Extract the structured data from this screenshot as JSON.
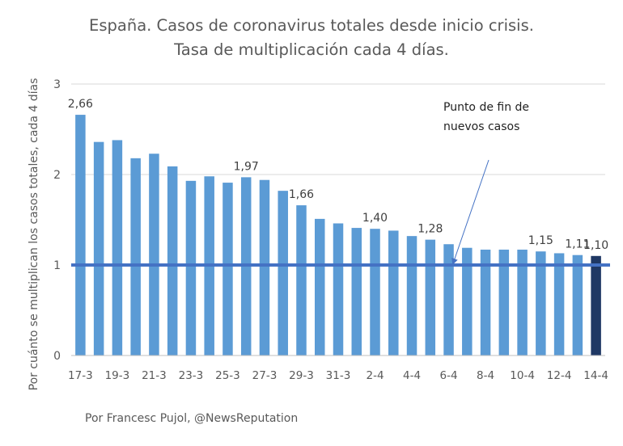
{
  "title_line1": "España. Casos de coronavirus totales desde inicio crisis.",
  "title_line2": "Tasa de multiplicación cada 4 días.",
  "annotation_line1": "Punto de fin de",
  "annotation_line2": "nuevos casos",
  "credit": "Por Francesc Pujol, @NewsReputation",
  "colors": {
    "bar": "#5b9bd5",
    "highlight_bar": "#1f3864",
    "reference_line": "#4472c4",
    "grid": "#d9d9d9"
  },
  "chart_data": {
    "type": "bar",
    "title": "España. Casos de coronavirus totales desde inicio crisis. Tasa de multiplicación cada 4 días.",
    "ylabel": "Por cuánto se multiplican los casos totales, cada 4 días",
    "xlabel": "",
    "ylim": [
      0,
      3
    ],
    "yticks": [
      0,
      1,
      2,
      3
    ],
    "grid": true,
    "categories": [
      "17-3",
      "18-3",
      "19-3",
      "20-3",
      "21-3",
      "22-3",
      "23-3",
      "24-3",
      "25-3",
      "26-3",
      "27-3",
      "28-3",
      "29-3",
      "30-3",
      "31-3",
      "1-4",
      "2-4",
      "3-4",
      "4-4",
      "5-4",
      "6-4",
      "7-4",
      "8-4",
      "9-4",
      "10-4",
      "11-4",
      "12-4",
      "13-4",
      "14-4"
    ],
    "shown_tick_labels": [
      "17-3",
      "19-3",
      "21-3",
      "23-3",
      "25-3",
      "27-3",
      "29-3",
      "31-3",
      "2-4",
      "4-4",
      "6-4",
      "8-4",
      "10-4",
      "12-4",
      "14-4"
    ],
    "values": [
      2.66,
      2.36,
      2.38,
      2.18,
      2.23,
      2.09,
      1.93,
      1.98,
      1.91,
      1.97,
      1.94,
      1.82,
      1.66,
      1.51,
      1.46,
      1.41,
      1.4,
      1.38,
      1.32,
      1.28,
      1.23,
      1.19,
      1.17,
      1.17,
      1.17,
      1.15,
      1.13,
      1.11,
      1.1
    ],
    "data_labels": [
      {
        "category": "17-3",
        "text": "2,66"
      },
      {
        "category": "26-3",
        "text": "1,97"
      },
      {
        "category": "29-3",
        "text": "1,66"
      },
      {
        "category": "2-4",
        "text": "1,40"
      },
      {
        "category": "5-4",
        "text": "1,28"
      },
      {
        "category": "11-4",
        "text": "1,15"
      },
      {
        "category": "13-4",
        "text": "1,11"
      },
      {
        "category": "14-4",
        "text": "1,10"
      }
    ],
    "highlighted_category": "14-4",
    "reference_line_value": 1
  }
}
